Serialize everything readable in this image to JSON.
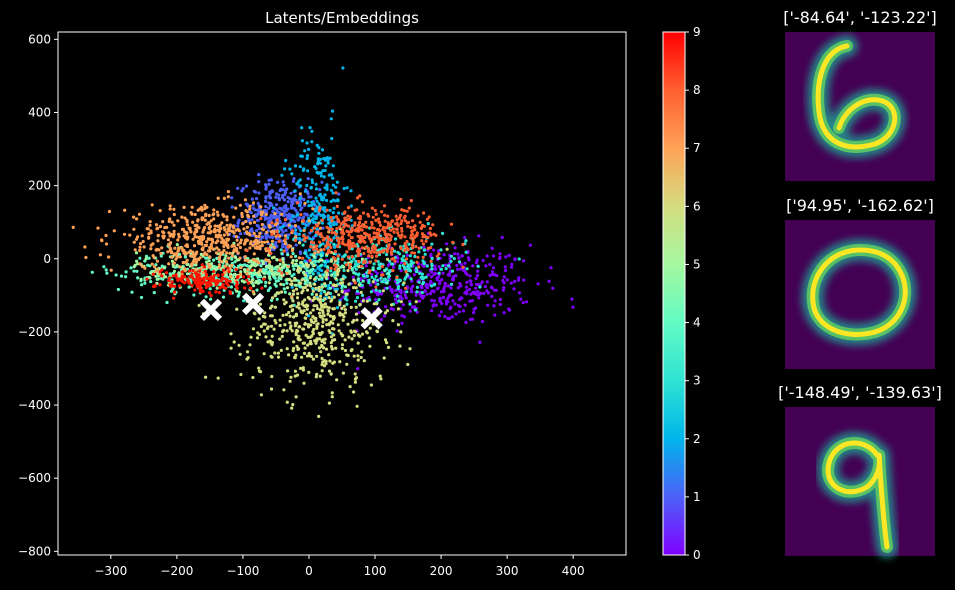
{
  "chart_data": [
    {
      "type": "scatter",
      "title": "Latents/Embeddings",
      "xlabel": "",
      "ylabel": "",
      "xlim": [
        -380,
        480
      ],
      "ylim": [
        -810,
        620
      ],
      "xticks": [
        -300,
        -200,
        -100,
        0,
        100,
        200,
        300,
        400
      ],
      "yticks": [
        -800,
        -600,
        -400,
        -200,
        0,
        200,
        400,
        600
      ],
      "grid": false,
      "colormap": "rainbow",
      "clusters": [
        {
          "label": 0,
          "color": "#8000ff",
          "center": [
            190,
            -70
          ],
          "spread": [
            75,
            55
          ],
          "count": 420
        },
        {
          "label": 1,
          "color": "#4c60f8",
          "center": [
            -45,
            110
          ],
          "spread": [
            30,
            50
          ],
          "count": 360
        },
        {
          "label": 2,
          "color": "#00b5eb",
          "center": [
            15,
            110
          ],
          "spread": [
            22,
            120
          ],
          "count": 300
        },
        {
          "label": 3,
          "color": "#2fe3d2",
          "center": [
            110,
            -20
          ],
          "spread": [
            65,
            45
          ],
          "count": 300
        },
        {
          "label": 4,
          "color": "#62fbc4",
          "center": [
            -110,
            -40
          ],
          "spread": [
            90,
            30
          ],
          "count": 380
        },
        {
          "label": 5,
          "color": "#a4f89f",
          "center": [
            -120,
            -30
          ],
          "spread": [
            70,
            25
          ],
          "count": 200
        },
        {
          "label": 6,
          "color": "#d4dd80",
          "center": [
            10,
            -170
          ],
          "spread": [
            55,
            90
          ],
          "count": 520
        },
        {
          "label": 7,
          "color": "#ffa256",
          "center": [
            -150,
            50
          ],
          "spread": [
            75,
            45
          ],
          "count": 520
        },
        {
          "label": 8,
          "color": "#ff5f31",
          "center": [
            90,
            60
          ],
          "spread": [
            55,
            40
          ],
          "count": 420
        },
        {
          "label": 9,
          "color": "#ff1500",
          "center": [
            -160,
            -60
          ],
          "spread": [
            35,
            18
          ],
          "count": 160
        }
      ],
      "highlight_points": [
        {
          "x": -148.49,
          "y": -139.63
        },
        {
          "x": -84.64,
          "y": -123.22
        },
        {
          "x": 94.95,
          "y": -162.62
        }
      ]
    },
    {
      "type": "colorbar",
      "range": [
        0,
        9
      ],
      "ticks": [
        0,
        1,
        2,
        3,
        4,
        5,
        6,
        7,
        8,
        9
      ],
      "colors": [
        "#8000ff",
        "#4c60f8",
        "#00b5eb",
        "#2fe3d2",
        "#62fbc4",
        "#a4f89f",
        "#d4dd80",
        "#ffa256",
        "#ff5f31",
        "#ff0000"
      ]
    }
  ],
  "thumbnails": [
    {
      "title": "['-84.64', '-123.22']",
      "digit": "6"
    },
    {
      "title": "['94.95', '-162.62']",
      "digit": "0"
    },
    {
      "title": "['-148.49', '-139.63']",
      "digit": "9"
    }
  ],
  "colors": {
    "background": "#000000",
    "thumb_background": "#440154",
    "thumb_stroke": "#fde725",
    "thumb_glow": "#21918c"
  }
}
